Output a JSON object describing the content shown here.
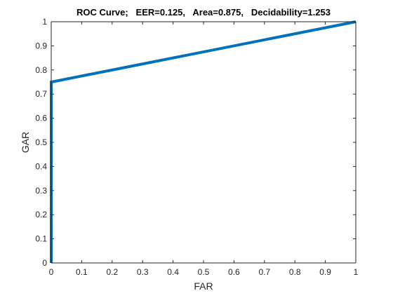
{
  "chart_data": {
    "type": "line",
    "title": "ROC Curve;   EER=0.125,   Area=0.875,   Decidability=1.253",
    "xlabel": "FAR",
    "ylabel": "GAR",
    "xlim": [
      0,
      1
    ],
    "ylim": [
      0,
      1
    ],
    "xticks": [
      0,
      0.1,
      0.2,
      0.3,
      0.4,
      0.5,
      0.6,
      0.7,
      0.8,
      0.9,
      1
    ],
    "yticks": [
      0,
      0.1,
      0.2,
      0.3,
      0.4,
      0.5,
      0.6,
      0.7,
      0.8,
      0.9,
      1
    ],
    "xtick_labels": [
      "0",
      "0.1",
      "0.2",
      "0.3",
      "0.4",
      "0.5",
      "0.6",
      "0.7",
      "0.8",
      "0.9",
      "1"
    ],
    "ytick_labels": [
      "0",
      "0.1",
      "0.2",
      "0.3",
      "0.4",
      "0.5",
      "0.6",
      "0.7",
      "0.8",
      "0.9",
      "1"
    ],
    "grid": false,
    "series": [
      {
        "color": "#0072BD",
        "x": [
          0,
          0,
          1
        ],
        "y": [
          0,
          0.75,
          1
        ]
      }
    ]
  }
}
